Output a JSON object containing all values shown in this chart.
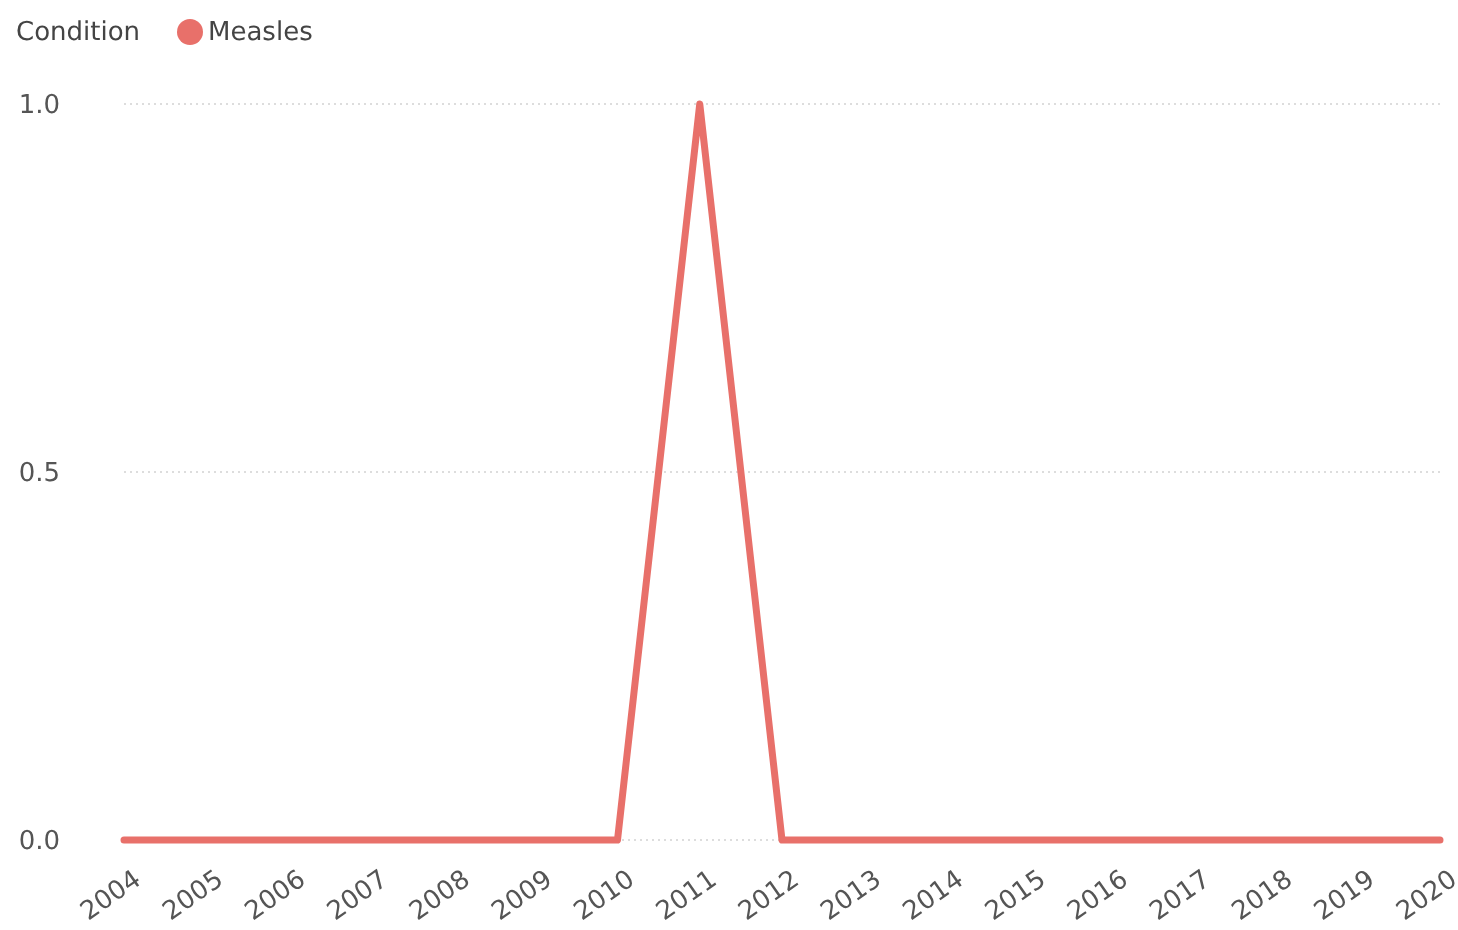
{
  "chart_data": {
    "type": "line",
    "legend_title": "Condition",
    "legend": "top left",
    "grid": "y",
    "categories": [
      "2004",
      "2005",
      "2006",
      "2007",
      "2008",
      "2009",
      "2010",
      "2011",
      "2012",
      "2013",
      "2014",
      "2015",
      "2016",
      "2017",
      "2018",
      "2019",
      "2020"
    ],
    "series": [
      {
        "name": "Measles",
        "color": "#e8706a",
        "values": [
          0,
          0,
          0,
          0,
          0,
          0,
          0,
          1,
          0,
          0,
          0,
          0,
          0,
          0,
          0,
          0,
          0
        ]
      }
    ],
    "ylim": [
      0,
      1
    ],
    "yticks": [
      {
        "value": 0,
        "label": "0.0"
      },
      {
        "value": 0.5,
        "label": "0.5"
      },
      {
        "value": 1,
        "label": "1.0"
      }
    ],
    "marker": "none",
    "line_style": "solid"
  }
}
